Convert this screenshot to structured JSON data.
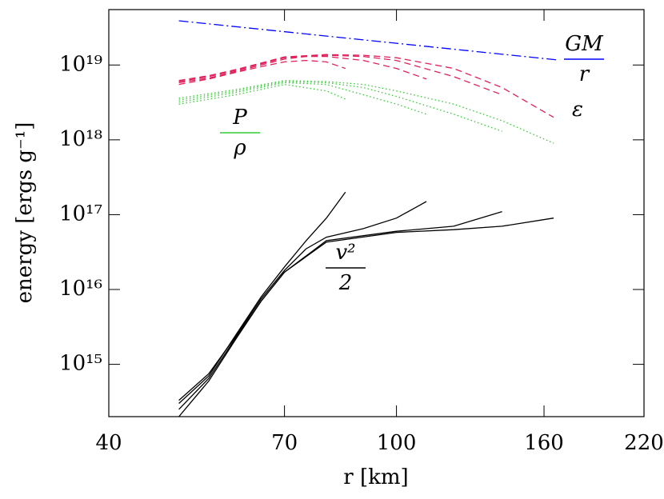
{
  "chart_data": {
    "type": "line",
    "xlabel": "r [km]",
    "ylabel": "energy [ergs g⁻¹]",
    "xscale": "log",
    "yscale": "log",
    "xlim": [
      40,
      220
    ],
    "ylim": [
      200000000000000.0,
      5.5e+19
    ],
    "xticks": [
      40,
      70,
      100,
      160,
      220
    ],
    "yticks": [
      {
        "value": 1000000000000000.0,
        "label": "10¹⁵"
      },
      {
        "value": 1e+16,
        "label": "10¹⁶"
      },
      {
        "value": 1e+17,
        "label": "10¹⁷"
      },
      {
        "value": 1e+18,
        "label": "10¹⁸"
      },
      {
        "value": 1e+19,
        "label": "10¹⁹"
      }
    ],
    "annotations": {
      "gm_r": {
        "numerator": "GM",
        "denominator": "r",
        "color": "#0000ff"
      },
      "epsilon": {
        "text": "ε",
        "color": "#e0205a"
      },
      "p_rho": {
        "numerator": "P",
        "denominator": "ρ",
        "color": "#33cc33"
      },
      "v2": {
        "numerator": "v²",
        "denominator": "2",
        "color": "#000000"
      }
    },
    "series": [
      {
        "color": "#0000ff",
        "dash": "dashdot",
        "x": [
          50,
          168
        ],
        "values": [
          3.9e+19,
          1.16e+19
        ]
      },
      {
        "color": "#e0205a",
        "dash": "dashed",
        "x": [
          50,
          55,
          60,
          65,
          70,
          75,
          80,
          85
        ],
        "values": [
          5.5e+18,
          6.5e+18,
          8e+18,
          9.5e+18,
          1.1e+19,
          1.15e+19,
          1.1e+19,
          9e+18
        ]
      },
      {
        "color": "#e0205a",
        "dash": "dashed",
        "x": [
          50,
          55,
          60,
          65,
          70,
          75,
          80,
          90,
          100,
          110
        ],
        "values": [
          5.8e+18,
          6.7e+18,
          8.2e+18,
          1e+19,
          1.2e+19,
          1.3e+19,
          1.3e+19,
          1.15e+19,
          9e+18,
          6.5e+18
        ]
      },
      {
        "color": "#e0205a",
        "dash": "dashed",
        "x": [
          50,
          55,
          60,
          70,
          80,
          90,
          100,
          120,
          140
        ],
        "values": [
          6e+18,
          7e+18,
          8.5e+18,
          1.25e+19,
          1.35e+19,
          1.3e+19,
          1.15e+19,
          7e+18,
          4e+18
        ]
      },
      {
        "color": "#e0205a",
        "dash": "dashed",
        "x": [
          50,
          55,
          60,
          70,
          80,
          90,
          100,
          120,
          140,
          165
        ],
        "values": [
          6.2e+18,
          7.2e+18,
          8.7e+18,
          1.28e+19,
          1.38e+19,
          1.35e+19,
          1.25e+19,
          9e+18,
          5e+18,
          2e+18
        ]
      },
      {
        "color": "#33cc33",
        "dash": "dotted",
        "x": [
          50,
          60,
          70,
          80,
          85
        ],
        "values": [
          3e+18,
          4e+18,
          5.5e+18,
          4.5e+18,
          3.5e+18
        ]
      },
      {
        "color": "#33cc33",
        "dash": "dotted",
        "x": [
          50,
          60,
          70,
          80,
          90,
          100,
          110
        ],
        "values": [
          3.2e+18,
          4.3e+18,
          5.8e+18,
          5.5e+18,
          4e+18,
          3e+18,
          2.2e+18
        ]
      },
      {
        "color": "#33cc33",
        "dash": "dotted",
        "x": [
          50,
          60,
          70,
          80,
          90,
          100,
          120,
          140
        ],
        "values": [
          3.4e+18,
          4.5e+18,
          6e+18,
          5.8e+18,
          5e+18,
          3.8e+18,
          2.2e+18,
          1.3e+18
        ]
      },
      {
        "color": "#33cc33",
        "dash": "dotted",
        "x": [
          50,
          60,
          70,
          80,
          90,
          100,
          120,
          140,
          165
        ],
        "values": [
          3.6e+18,
          4.7e+18,
          6.2e+18,
          6e+18,
          5.5e+18,
          4.5e+18,
          3e+18,
          1.8e+18,
          9e+17
        ]
      },
      {
        "color": "#000000",
        "dash": "solid",
        "x": [
          50,
          55,
          60,
          65,
          70,
          75,
          80,
          85
        ],
        "values": [
          300000000000000.0,
          700000000000000.0,
          2500000000000000.0,
          8000000000000000.0,
          2e+16,
          4.5e+16,
          9e+16,
          2e+17
        ]
      },
      {
        "color": "#000000",
        "dash": "solid",
        "x": [
          50,
          55,
          60,
          65,
          70,
          75,
          80,
          90,
          100,
          110
        ],
        "values": [
          330000000000000.0,
          750000000000000.0,
          2400000000000000.0,
          7500000000000000.0,
          1.8e+16,
          3.5e+16,
          5e+16,
          6.5e+16,
          9e+16,
          1.5e+17
        ]
      },
      {
        "color": "#000000",
        "dash": "solid",
        "x": [
          50,
          55,
          60,
          65,
          70,
          80,
          100,
          120,
          140
        ],
        "values": [
          250000000000000.0,
          650000000000000.0,
          2300000000000000.0,
          7000000000000000.0,
          1.7e+16,
          4.5e+16,
          6e+16,
          7e+16,
          1.1e+17
        ]
      },
      {
        "color": "#000000",
        "dash": "solid",
        "x": [
          50,
          55,
          60,
          65,
          70,
          80,
          100,
          120,
          140,
          165
        ],
        "values": [
          200000000000000.0,
          600000000000000.0,
          2200000000000000.0,
          7000000000000000.0,
          1.7e+16,
          4.3e+16,
          5.8e+16,
          6.3e+16,
          7e+16,
          9e+16
        ]
      }
    ]
  }
}
